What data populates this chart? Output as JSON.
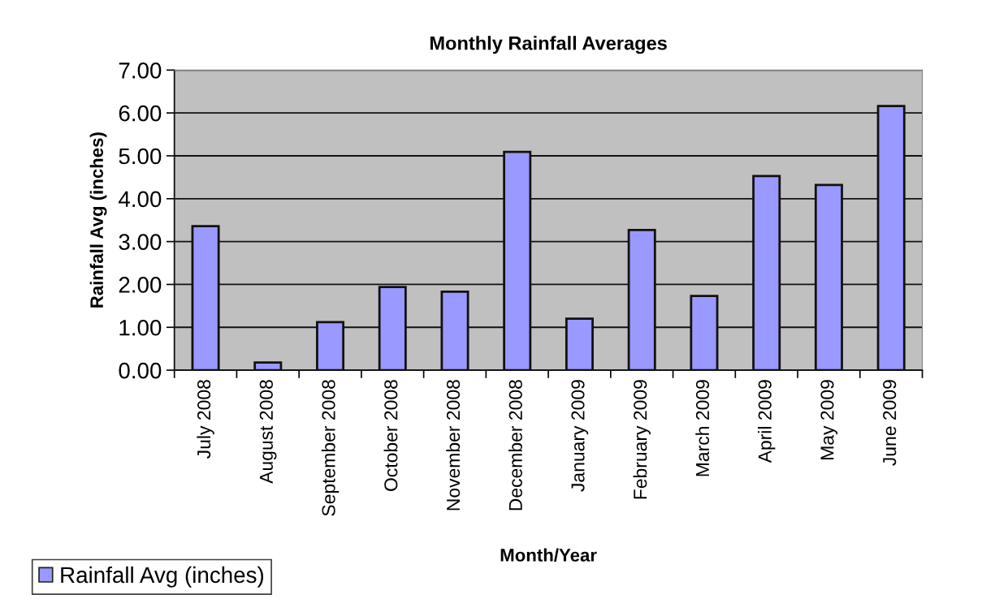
{
  "chart_data": {
    "type": "bar",
    "title": "Monthly Rainfall Averages",
    "xlabel": "Month/Year",
    "ylabel": "Rainfall Avg (inches)",
    "categories": [
      "July 2008",
      "August 2008",
      "September 2008",
      "October 2008",
      "November 2008",
      "December 2008",
      "January 2009",
      "February 2009",
      "March 2009",
      "April 2009",
      "May 2009",
      "June 2009"
    ],
    "series": [
      {
        "name": "Rainfall Avg (inches)",
        "color": "#9999ff",
        "values": [
          3.36,
          0.18,
          1.12,
          1.94,
          1.83,
          5.09,
          1.2,
          3.27,
          1.73,
          4.53,
          4.32,
          6.16
        ]
      }
    ],
    "ylim": [
      0,
      7
    ],
    "yticks": [
      {
        "value": 0,
        "label": "0.00"
      },
      {
        "value": 1,
        "label": "1.00"
      },
      {
        "value": 2,
        "label": "2.00"
      },
      {
        "value": 3,
        "label": "3.00"
      },
      {
        "value": 4,
        "label": "4.00"
      },
      {
        "value": 5,
        "label": "5.00"
      },
      {
        "value": 6,
        "label": "6.00"
      },
      {
        "value": 7,
        "label": "7.00"
      }
    ],
    "grid": "y",
    "legend": "bottom left"
  }
}
